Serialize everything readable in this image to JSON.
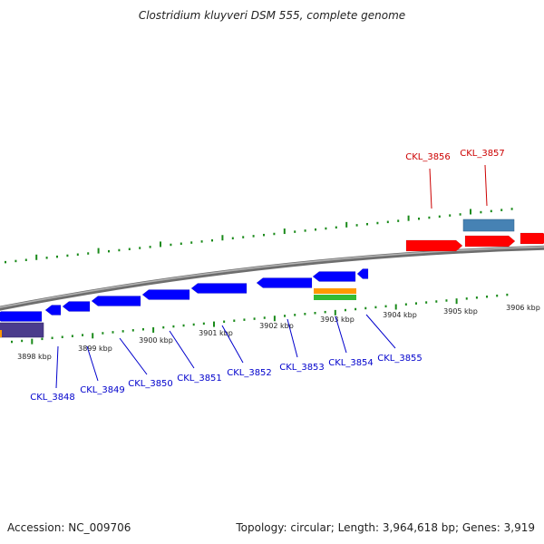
{
  "title": "Clostridium kluyveri DSM 555, complete genome",
  "footer": {
    "accession": "Accession: NC_009706",
    "summary": "Topology: circular; Length: 3,964,618 bp; Genes: 3,919"
  },
  "colors": {
    "backbone": "#8c8c8c",
    "tick": "#1a8a1a",
    "forward_gene": "#ff0000",
    "reverse_gene": "#0000ff",
    "forward_label": "#cc0000",
    "reverse_label": "#0000cc",
    "cds_box_blue": "#4682b4",
    "cds_box_orange": "#ff9900",
    "cds_box_green": "#33bb33",
    "cds_box_purple": "#4b3c8c"
  },
  "scale": {
    "unit": "kbp",
    "labels": [
      "3898 kbp",
      "3899 kbp",
      "3900 kbp",
      "3901 kbp",
      "3902 kbp",
      "3903 kbp",
      "3904 kbp",
      "3905 kbp",
      "3906 kbp"
    ]
  },
  "genes_forward": [
    {
      "label": "CKL_3856"
    },
    {
      "label": "CKL_3857"
    }
  ],
  "genes_reverse": [
    {
      "label": "CKL_3848"
    },
    {
      "label": "CKL_3849"
    },
    {
      "label": "CKL_3850"
    },
    {
      "label": "CKL_3851"
    },
    {
      "label": "CKL_3852"
    },
    {
      "label": "CKL_3853"
    },
    {
      "label": "CKL_3854"
    },
    {
      "label": "CKL_3855"
    }
  ]
}
